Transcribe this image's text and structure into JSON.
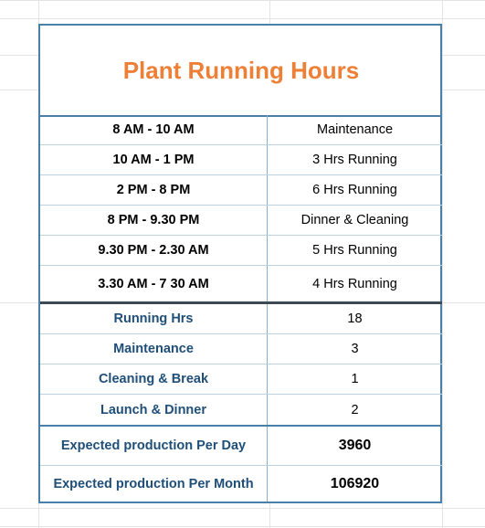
{
  "title": "Plant Running Hours",
  "schedule": [
    {
      "time": "8 AM - 10 AM",
      "activity": "Maintenance"
    },
    {
      "time": "10 AM - 1 PM",
      "activity": "3 Hrs Running"
    },
    {
      "time": "2 PM - 8 PM",
      "activity": "6 Hrs Running"
    },
    {
      "time": "8 PM - 9.30  PM",
      "activity": "Dinner & Cleaning"
    },
    {
      "time": "9.30 PM - 2.30 AM",
      "activity": "5 Hrs Running"
    },
    {
      "time": "3.30 AM - 7 30 AM",
      "activity": "4 Hrs Running"
    }
  ],
  "summary": [
    {
      "label": "Running Hrs",
      "value": "18"
    },
    {
      "label": "Maintenance",
      "value": "3"
    },
    {
      "label": "Cleaning  & Break",
      "value": "1"
    },
    {
      "label": "Launch & Dinner",
      "value": "2"
    }
  ],
  "production": [
    {
      "label": "Expected production Per Day",
      "value": "3960"
    },
    {
      "label": "Expected production Per Month",
      "value": "106920"
    }
  ],
  "colors": {
    "title": "#ee7f36",
    "label_blue": "#1f4e79",
    "border": "#4a7fa8"
  }
}
